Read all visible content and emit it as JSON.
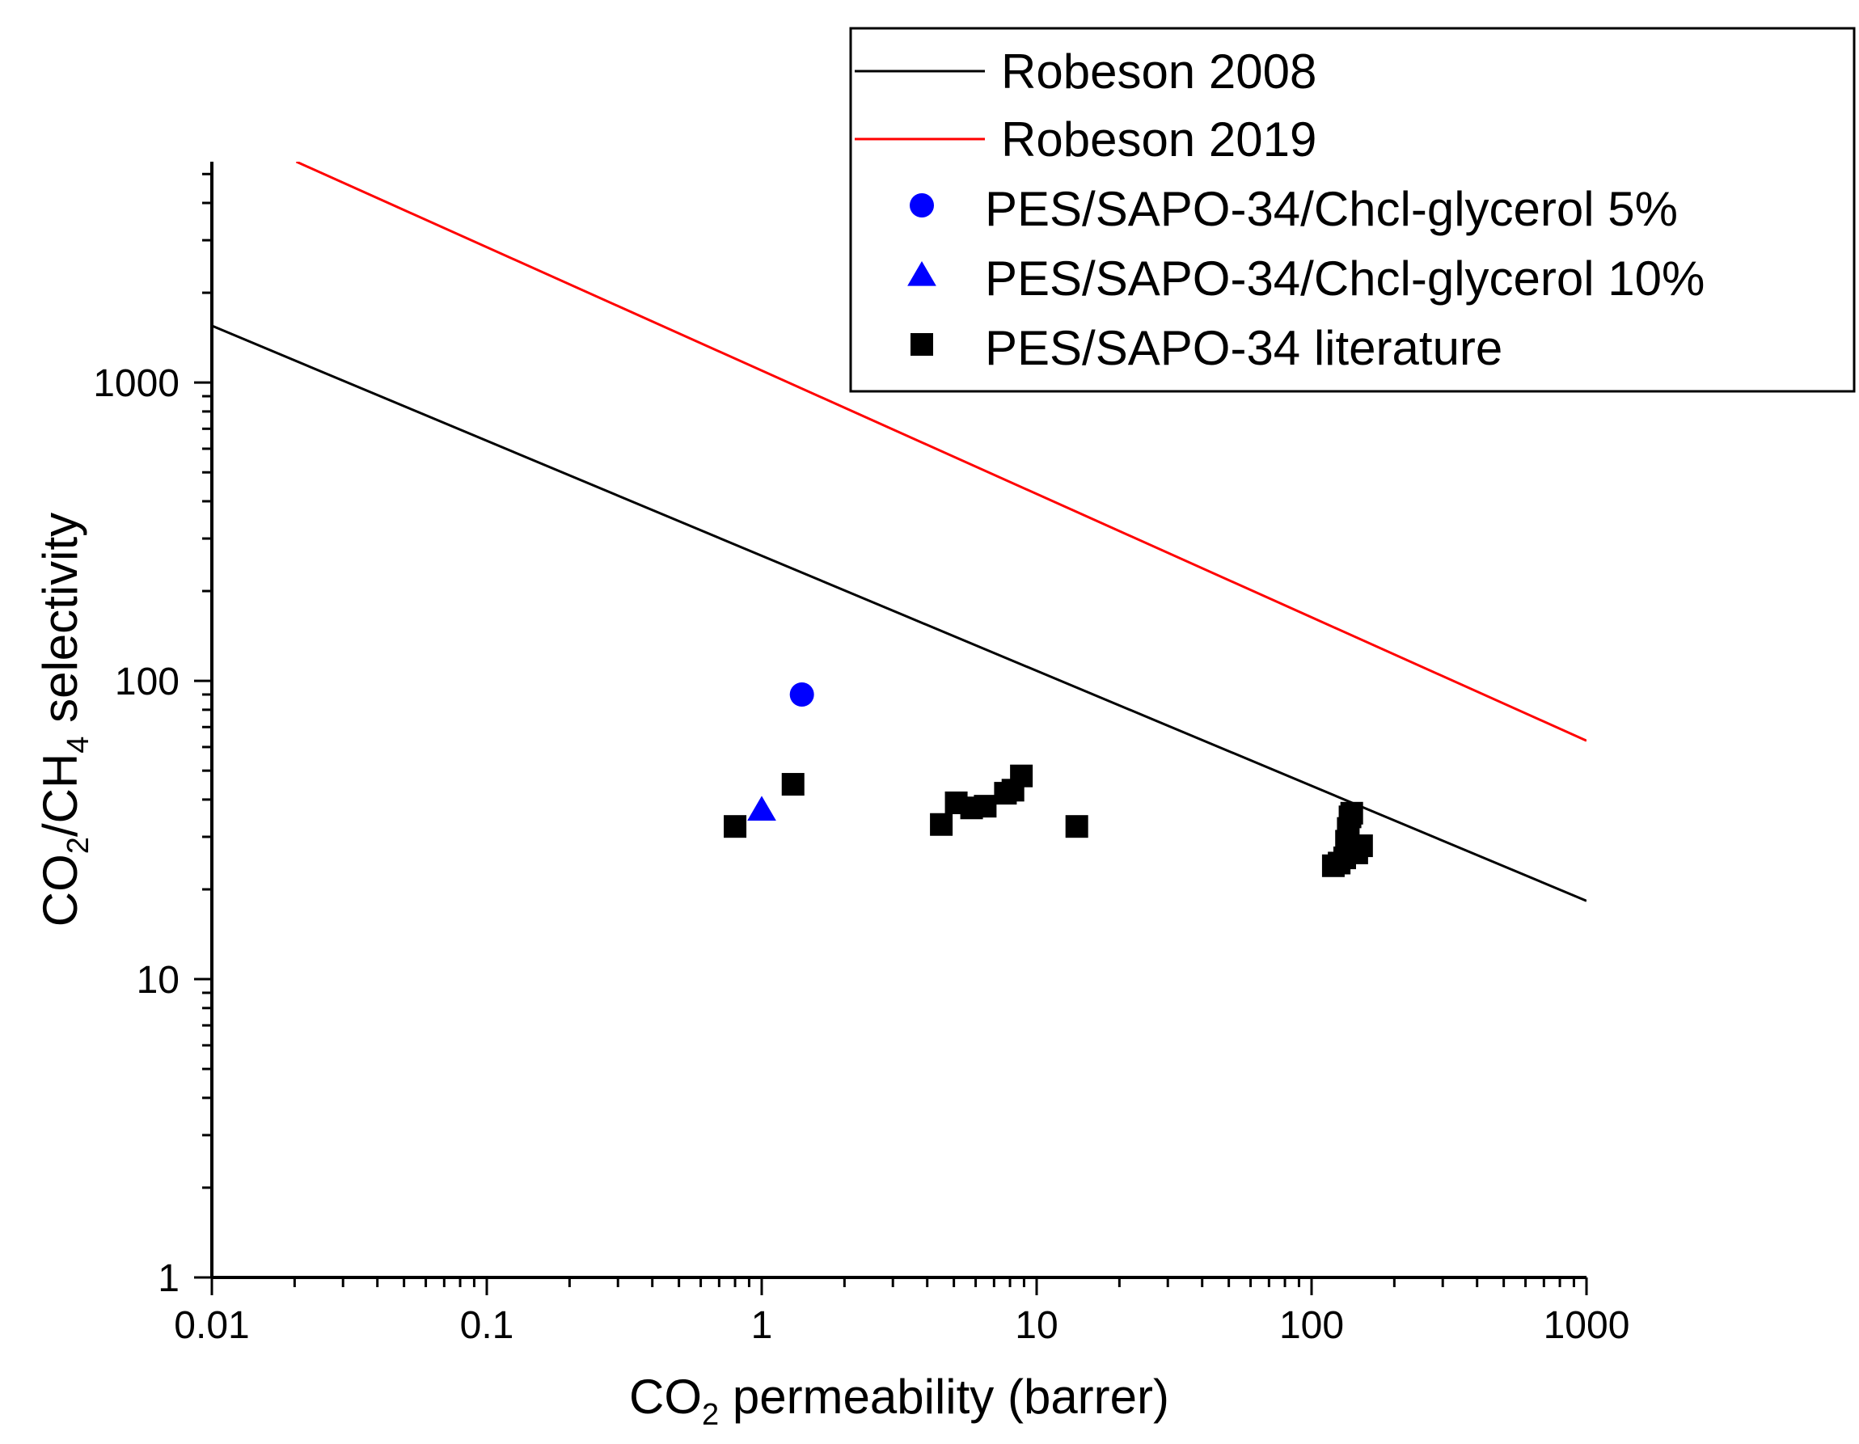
{
  "chart_data": {
    "type": "scatter",
    "title": "",
    "xlabel": {
      "prefix": "CO",
      "sub": "2",
      "suffix": " permeability (barrer)"
    },
    "ylabel": {
      "p1": "CO",
      "s1": "2",
      "p2": "/CH",
      "s2": "4",
      "p3": " selectivity"
    },
    "xscale": "log",
    "yscale": "log",
    "xlim": [
      0.01,
      1000
    ],
    "ylim": [
      1,
      5500
    ],
    "xticks": [
      0.01,
      0.1,
      1,
      10,
      100,
      1000
    ],
    "xtick_labels": [
      "0.01",
      "0.1",
      "1",
      "10",
      "100",
      "1000"
    ],
    "yticks": [
      1,
      10,
      100,
      1000
    ],
    "ytick_labels": [
      "1",
      "10",
      "100",
      "1000"
    ],
    "grid": false,
    "legend_position": "top-right",
    "series": [
      {
        "name": "Robeson 2008",
        "kind": "line",
        "color": "#000000",
        "points": [
          [
            0.01,
            1550
          ],
          [
            1000,
            18.3
          ]
        ]
      },
      {
        "name": "Robeson 2019",
        "kind": "line",
        "color": "#ff0000",
        "points": [
          [
            0.0203,
            5500
          ],
          [
            1000,
            63
          ]
        ]
      },
      {
        "name": "PES/SAPO-34/Chcl-glycerol 5%",
        "kind": "marker",
        "marker": "circle",
        "color": "#0000ff",
        "points": [
          [
            1.4,
            90
          ]
        ]
      },
      {
        "name": "PES/SAPO-34/Chcl-glycerol 10%",
        "kind": "marker",
        "marker": "triangle",
        "color": "#0000ff",
        "points": [
          [
            1.0,
            37
          ]
        ]
      },
      {
        "name": "PES/SAPO-34 literature",
        "kind": "marker",
        "marker": "square",
        "color": "#000000",
        "points": [
          [
            0.8,
            32.5
          ],
          [
            1.3,
            45
          ],
          [
            4.5,
            33
          ],
          [
            5.1,
            39
          ],
          [
            5.8,
            37.5
          ],
          [
            6.5,
            38
          ],
          [
            7.7,
            42
          ],
          [
            8.2,
            43
          ],
          [
            8.8,
            48
          ],
          [
            14,
            32.5
          ],
          [
            120,
            24
          ],
          [
            126,
            24.5
          ],
          [
            132,
            25.5
          ],
          [
            134,
            29
          ],
          [
            136,
            32
          ],
          [
            138,
            35
          ],
          [
            140,
            36
          ],
          [
            146,
            26.5
          ],
          [
            152,
            28
          ]
        ]
      }
    ]
  }
}
